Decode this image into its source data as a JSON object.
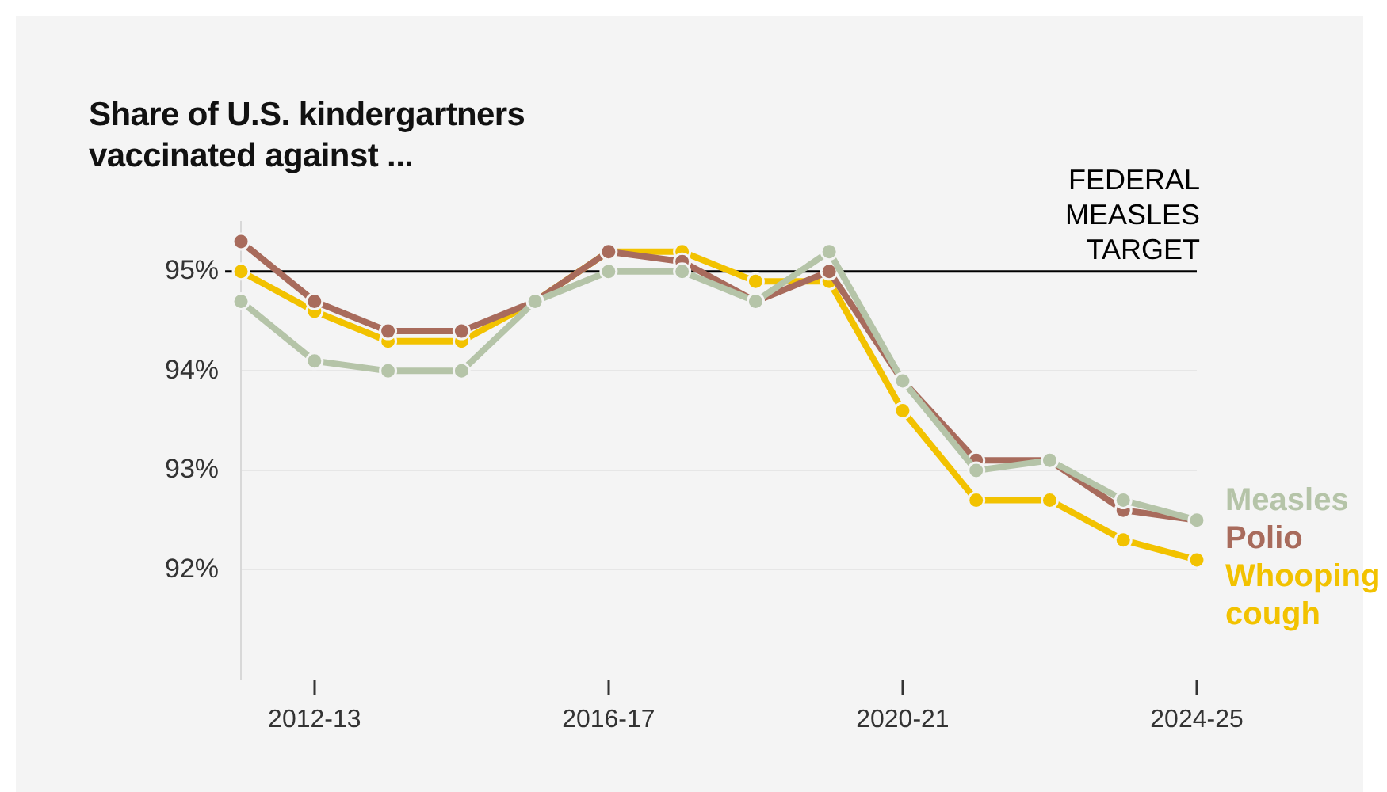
{
  "chart_data": {
    "type": "line",
    "title": "Share of U.S. kindergartners vaccinated against ...",
    "categories": [
      null,
      "2012-13",
      null,
      null,
      null,
      "2016-17",
      null,
      null,
      null,
      "2020-21",
      null,
      null,
      null,
      "2024-25"
    ],
    "series": [
      {
        "name": "Measles",
        "color": "#b5c4a8",
        "values": [
          94.7,
          94.1,
          94.0,
          94.0,
          94.7,
          95.0,
          95.0,
          94.7,
          95.2,
          93.9,
          93.0,
          93.1,
          92.7,
          92.5
        ]
      },
      {
        "name": "Polio",
        "color": "#a86b5c",
        "values": [
          95.3,
          94.7,
          94.4,
          94.4,
          94.7,
          95.2,
          95.1,
          94.7,
          95.0,
          93.9,
          93.1,
          93.1,
          92.6,
          92.5
        ]
      },
      {
        "name": "Whooping cough",
        "color": "#f2c200",
        "values": [
          95.0,
          94.6,
          94.3,
          94.3,
          94.7,
          95.2,
          95.2,
          94.9,
          94.9,
          93.6,
          92.7,
          92.7,
          92.3,
          92.1
        ]
      }
    ],
    "yticks": [
      {
        "value": 92,
        "label": "92%"
      },
      {
        "value": 93,
        "label": "93%"
      },
      {
        "value": 94,
        "label": "94%"
      },
      {
        "value": 95,
        "label": "95%"
      }
    ],
    "ylim": [
      90.9,
      95.5
    ],
    "grid": "y",
    "marker": "circle",
    "line_style": "solid",
    "ref_lines": [
      {
        "axis": "y",
        "value": 95,
        "label": "FEDERAL\nMEASLES\nTARGET",
        "color": "#000000"
      }
    ]
  }
}
